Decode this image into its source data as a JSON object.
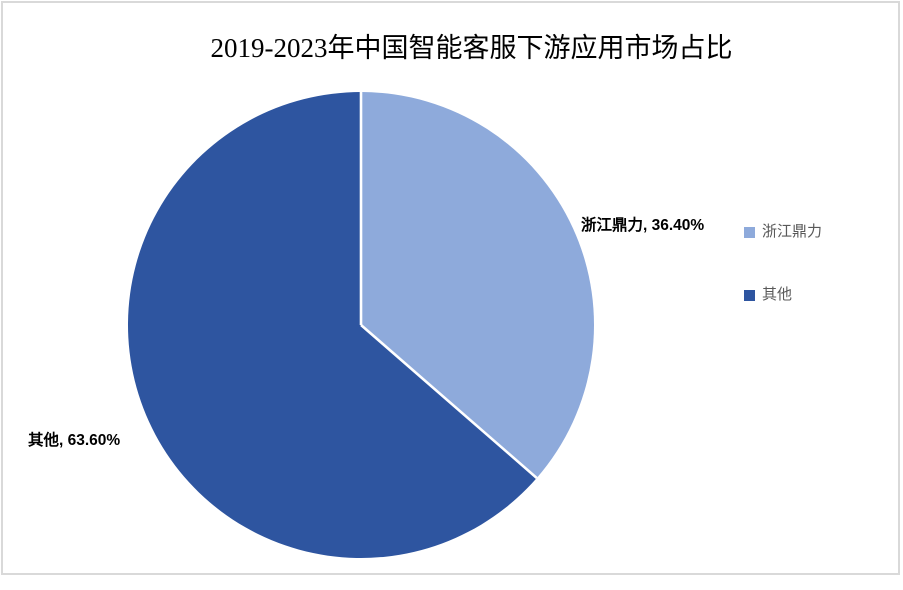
{
  "title": "2019-2023年中国智能客服下游应用市场占比",
  "chart_data": {
    "type": "pie",
    "title": "2019-2023年中国智能客服下游应用市场占比",
    "slices": [
      {
        "label": "浙江鼎力",
        "value": 36.4,
        "data_label": "浙江鼎力, 36.40%",
        "color": "#8EAADB"
      },
      {
        "label": "其他",
        "value": 63.6,
        "data_label": "其他, 63.60%",
        "color": "#2E55A0"
      }
    ],
    "start_angle_deg": 0,
    "direction": "clockwise",
    "legend_position": "right",
    "slice_separator_color": "#FFFFFF"
  },
  "legend": {
    "items": [
      {
        "label": "浙江鼎力",
        "color": "#8EAADB"
      },
      {
        "label": "其他",
        "color": "#2E55A0"
      }
    ]
  },
  "colors": {
    "background": "#FFFFFF",
    "frame_border": "#D9D9D9",
    "title_text": "#000000",
    "data_label_text": "#000000",
    "legend_text": "#595959"
  }
}
